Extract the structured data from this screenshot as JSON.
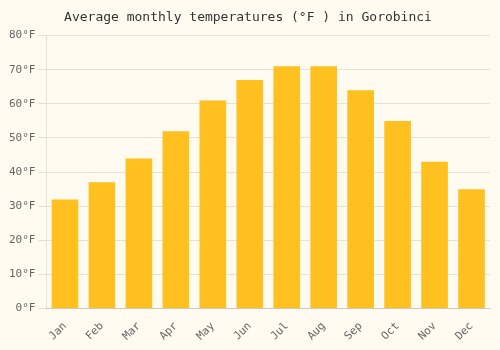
{
  "chart_data": {
    "type": "bar",
    "title": "Average monthly temperatures (°F ) in Gorobinci",
    "categories": [
      "Jan",
      "Feb",
      "Mar",
      "Apr",
      "May",
      "Jun",
      "Jul",
      "Aug",
      "Sep",
      "Oct",
      "Nov",
      "Dec"
    ],
    "values": [
      32,
      37,
      44,
      52,
      61,
      67,
      71,
      71,
      64,
      55,
      43,
      35
    ],
    "color": "#FFC020",
    "ylim": [
      0,
      80
    ],
    "yticks": [
      {
        "value": 0,
        "label": "0°F"
      },
      {
        "value": 10,
        "label": "10°F"
      },
      {
        "value": 20,
        "label": "20°F"
      },
      {
        "value": 30,
        "label": "30°F"
      },
      {
        "value": 40,
        "label": "40°F"
      },
      {
        "value": 50,
        "label": "50°F"
      },
      {
        "value": 60,
        "label": "60°F"
      },
      {
        "value": 70,
        "label": "70°F"
      },
      {
        "value": 80,
        "label": "80°F"
      }
    ],
    "grid": true
  }
}
